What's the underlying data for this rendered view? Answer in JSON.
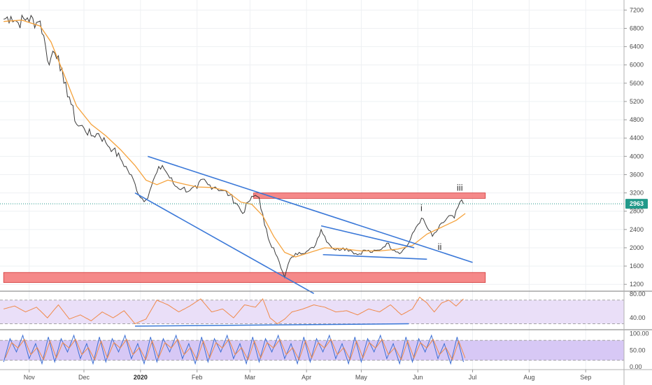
{
  "chart_data": {
    "type": "line",
    "main": {
      "y_ticks": [
        7200,
        6800,
        6400,
        6000,
        5600,
        5200,
        4800,
        4400,
        4000,
        3600,
        3200,
        2800,
        2400,
        2000,
        1600,
        1200
      ],
      "ylim": [
        1050,
        7420
      ],
      "current_price": {
        "value": 2963,
        "label": "2963",
        "color": "#22998a"
      },
      "price_series": [
        {
          "t": 0,
          "v": 7000
        },
        {
          "t": 4,
          "v": 7060
        },
        {
          "t": 8,
          "v": 6920
        },
        {
          "t": 13,
          "v": 7030
        },
        {
          "t": 18,
          "v": 6930
        },
        {
          "t": 20,
          "v": 6960
        },
        {
          "t": 23,
          "v": 6400
        },
        {
          "t": 25,
          "v": 6000
        },
        {
          "t": 27,
          "v": 6300
        },
        {
          "t": 30,
          "v": 6200
        },
        {
          "t": 33,
          "v": 5600
        },
        {
          "t": 36,
          "v": 5300
        },
        {
          "t": 40,
          "v": 4700
        },
        {
          "t": 44,
          "v": 4620
        },
        {
          "t": 48,
          "v": 4450
        },
        {
          "t": 52,
          "v": 4500
        },
        {
          "t": 56,
          "v": 4300
        },
        {
          "t": 60,
          "v": 4150
        },
        {
          "t": 64,
          "v": 3950
        },
        {
          "t": 68,
          "v": 3700
        },
        {
          "t": 72,
          "v": 3400
        },
        {
          "t": 75,
          "v": 3100
        },
        {
          "t": 78,
          "v": 3050
        },
        {
          "t": 81,
          "v": 3350
        },
        {
          "t": 84,
          "v": 3650
        },
        {
          "t": 87,
          "v": 3800
        },
        {
          "t": 90,
          "v": 3600
        },
        {
          "t": 94,
          "v": 3350
        },
        {
          "t": 98,
          "v": 3300
        },
        {
          "t": 102,
          "v": 3250
        },
        {
          "t": 106,
          "v": 3300
        },
        {
          "t": 109,
          "v": 3500
        },
        {
          "t": 112,
          "v": 3380
        },
        {
          "t": 116,
          "v": 3330
        },
        {
          "t": 120,
          "v": 3250
        },
        {
          "t": 124,
          "v": 3150
        },
        {
          "t": 128,
          "v": 2950
        },
        {
          "t": 131,
          "v": 2750
        },
        {
          "t": 134,
          "v": 3000
        },
        {
          "t": 138,
          "v": 3150
        },
        {
          "t": 140,
          "v": 3100
        },
        {
          "t": 143,
          "v": 2500
        },
        {
          "t": 146,
          "v": 2100
        },
        {
          "t": 148,
          "v": 2000
        },
        {
          "t": 150,
          "v": 1800
        },
        {
          "t": 152,
          "v": 1550
        },
        {
          "t": 154,
          "v": 1350
        },
        {
          "t": 156,
          "v": 1650
        },
        {
          "t": 158,
          "v": 1800
        },
        {
          "t": 162,
          "v": 1900
        },
        {
          "t": 166,
          "v": 1920
        },
        {
          "t": 170,
          "v": 2000
        },
        {
          "t": 174,
          "v": 2400
        },
        {
          "t": 178,
          "v": 2100
        },
        {
          "t": 182,
          "v": 1950
        },
        {
          "t": 186,
          "v": 2000
        },
        {
          "t": 190,
          "v": 1950
        },
        {
          "t": 194,
          "v": 1850
        },
        {
          "t": 198,
          "v": 1950
        },
        {
          "t": 202,
          "v": 1900
        },
        {
          "t": 206,
          "v": 1950
        },
        {
          "t": 210,
          "v": 2100
        },
        {
          "t": 214,
          "v": 1950
        },
        {
          "t": 218,
          "v": 1900
        },
        {
          "t": 222,
          "v": 2100
        },
        {
          "t": 226,
          "v": 2450
        },
        {
          "t": 229,
          "v": 2650
        },
        {
          "t": 232,
          "v": 2450
        },
        {
          "t": 235,
          "v": 2250
        },
        {
          "t": 238,
          "v": 2400
        },
        {
          "t": 241,
          "v": 2550
        },
        {
          "t": 244,
          "v": 2700
        },
        {
          "t": 247,
          "v": 2650
        },
        {
          "t": 250,
          "v": 3000
        },
        {
          "t": 252,
          "v": 2963
        }
      ],
      "ma_series": [
        {
          "t": 0,
          "v": 6950
        },
        {
          "t": 10,
          "v": 6980
        },
        {
          "t": 20,
          "v": 6850
        },
        {
          "t": 26,
          "v": 6500
        },
        {
          "t": 32,
          "v": 5900
        },
        {
          "t": 40,
          "v": 5100
        },
        {
          "t": 48,
          "v": 4700
        },
        {
          "t": 56,
          "v": 4450
        },
        {
          "t": 64,
          "v": 4150
        },
        {
          "t": 72,
          "v": 3800
        },
        {
          "t": 78,
          "v": 3480
        },
        {
          "t": 84,
          "v": 3380
        },
        {
          "t": 90,
          "v": 3480
        },
        {
          "t": 98,
          "v": 3400
        },
        {
          "t": 106,
          "v": 3330
        },
        {
          "t": 114,
          "v": 3320
        },
        {
          "t": 122,
          "v": 3250
        },
        {
          "t": 130,
          "v": 3000
        },
        {
          "t": 136,
          "v": 2950
        },
        {
          "t": 142,
          "v": 2700
        },
        {
          "t": 148,
          "v": 2250
        },
        {
          "t": 154,
          "v": 1900
        },
        {
          "t": 160,
          "v": 1800
        },
        {
          "t": 168,
          "v": 1900
        },
        {
          "t": 176,
          "v": 2000
        },
        {
          "t": 186,
          "v": 1980
        },
        {
          "t": 196,
          "v": 1930
        },
        {
          "t": 206,
          "v": 1930
        },
        {
          "t": 216,
          "v": 1970
        },
        {
          "t": 224,
          "v": 2050
        },
        {
          "t": 232,
          "v": 2300
        },
        {
          "t": 240,
          "v": 2450
        },
        {
          "t": 248,
          "v": 2600
        },
        {
          "t": 253,
          "v": 2750
        }
      ],
      "trendlines": [
        {
          "t1": 79,
          "v1": 4000,
          "t2": 257,
          "v2": 1680
        },
        {
          "t1": 72,
          "v1": 3200,
          "t2": 170,
          "v2": 1000
        },
        {
          "t1": 174,
          "v1": 2480,
          "t2": 225,
          "v2": 2000
        },
        {
          "t1": 175,
          "v1": 1850,
          "t2": 232,
          "v2": 1750
        }
      ],
      "zones": [
        {
          "t1": 137,
          "t2": 264,
          "v1": 3080,
          "v2": 3200,
          "color": "#f47c7c"
        },
        {
          "t1": 0,
          "t2": 264,
          "v1": 1240,
          "v2": 1460,
          "color": "#f47c7c"
        }
      ],
      "wave_labels": [
        {
          "text": "i",
          "t": 229,
          "v": 2800
        },
        {
          "text": "ii",
          "t": 239,
          "v": 1950
        },
        {
          "text": "iii",
          "t": 250,
          "v": 3250
        }
      ]
    },
    "rsi": {
      "y_ticks": [
        80,
        40
      ],
      "ylim": [
        20,
        85
      ],
      "band": [
        30,
        70
      ],
      "series": [
        {
          "t": 0,
          "v": 55
        },
        {
          "t": 6,
          "v": 60
        },
        {
          "t": 12,
          "v": 50
        },
        {
          "t": 18,
          "v": 58
        },
        {
          "t": 24,
          "v": 40
        },
        {
          "t": 30,
          "v": 62
        },
        {
          "t": 36,
          "v": 38
        },
        {
          "t": 42,
          "v": 45
        },
        {
          "t": 48,
          "v": 35
        },
        {
          "t": 54,
          "v": 50
        },
        {
          "t": 60,
          "v": 40
        },
        {
          "t": 66,
          "v": 52
        },
        {
          "t": 72,
          "v": 30
        },
        {
          "t": 78,
          "v": 38
        },
        {
          "t": 84,
          "v": 70
        },
        {
          "t": 90,
          "v": 62
        },
        {
          "t": 96,
          "v": 50
        },
        {
          "t": 102,
          "v": 60
        },
        {
          "t": 108,
          "v": 72
        },
        {
          "t": 114,
          "v": 50
        },
        {
          "t": 120,
          "v": 55
        },
        {
          "t": 126,
          "v": 40
        },
        {
          "t": 132,
          "v": 62
        },
        {
          "t": 138,
          "v": 58
        },
        {
          "t": 142,
          "v": 72
        },
        {
          "t": 146,
          "v": 40
        },
        {
          "t": 150,
          "v": 30
        },
        {
          "t": 154,
          "v": 38
        },
        {
          "t": 158,
          "v": 50
        },
        {
          "t": 164,
          "v": 55
        },
        {
          "t": 170,
          "v": 62
        },
        {
          "t": 176,
          "v": 58
        },
        {
          "t": 182,
          "v": 50
        },
        {
          "t": 188,
          "v": 52
        },
        {
          "t": 194,
          "v": 45
        },
        {
          "t": 200,
          "v": 55
        },
        {
          "t": 206,
          "v": 50
        },
        {
          "t": 212,
          "v": 62
        },
        {
          "t": 218,
          "v": 45
        },
        {
          "t": 224,
          "v": 55
        },
        {
          "t": 228,
          "v": 75
        },
        {
          "t": 232,
          "v": 65
        },
        {
          "t": 236,
          "v": 50
        },
        {
          "t": 240,
          "v": 65
        },
        {
          "t": 244,
          "v": 70
        },
        {
          "t": 248,
          "v": 60
        },
        {
          "t": 252,
          "v": 72
        }
      ],
      "trendline": {
        "t1": 72,
        "v1": 26,
        "t2": 222,
        "v2": 30
      }
    },
    "stoch": {
      "y_ticks": [
        100.0,
        50.0,
        0.0
      ],
      "y_tick_labels": [
        "100.00",
        "50.00",
        "0.00"
      ],
      "ylim": [
        -8,
        112
      ],
      "band": [
        20,
        80
      ],
      "period": 7,
      "pattern": [
        15,
        85,
        45,
        95,
        25,
        70,
        10,
        90
      ]
    },
    "x_axis": {
      "ticks": [
        {
          "label": "Nov",
          "t": 14
        },
        {
          "label": "Dec",
          "t": 44
        },
        {
          "label": "2020",
          "t": 75,
          "bold": true
        },
        {
          "label": "Feb",
          "t": 106
        },
        {
          "label": "Mar",
          "t": 135
        },
        {
          "label": "Apr",
          "t": 166
        },
        {
          "label": "May",
          "t": 196
        },
        {
          "label": "Jun",
          "t": 227
        },
        {
          "label": "Jul",
          "t": 257
        },
        {
          "label": "Aug",
          "t": 288
        },
        {
          "label": "Sep",
          "t": 319
        }
      ]
    },
    "colors": {
      "price": "#3a3a3a",
      "ma": "#f5a23c",
      "trendline": "#3a78d8",
      "rsi": "#f08a4b",
      "rsi_band": "#eadff8",
      "stoch_k": "#3d6fd4",
      "stoch_d": "#f08a4b",
      "stoch_band": "#d7c8f5"
    }
  }
}
